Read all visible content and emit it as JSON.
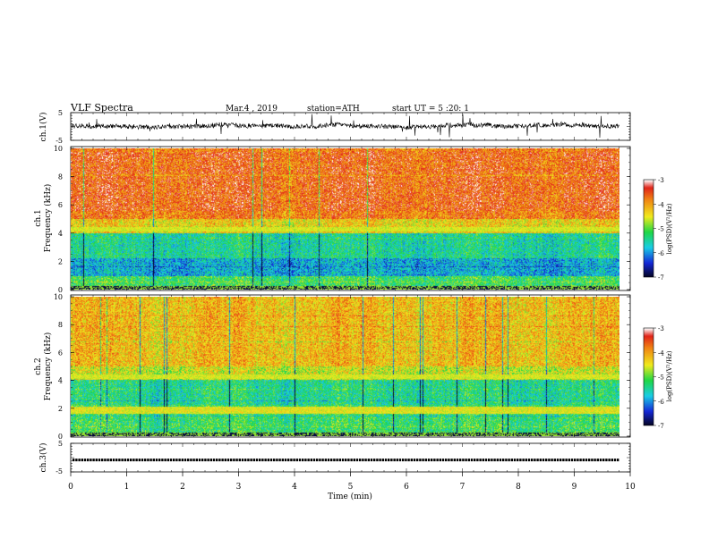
{
  "header": {
    "title": "VLF Spectra",
    "date": "Mar.4 , 2019",
    "station": "station=ATH",
    "start_time": "start UT = 5 :20: 1"
  },
  "chart_data": [
    {
      "type": "line",
      "name": "ch1-waveform",
      "ylabel": "ch.1(V)",
      "ylim": [
        -5,
        5
      ],
      "yticks": [
        "5",
        "-5"
      ],
      "xlim": [
        0,
        10
      ],
      "data_end_min": 9.8,
      "baseline": 0.1
    },
    {
      "type": "heatmap",
      "name": "ch1-spectrogram",
      "ylabel_top": "ch.1",
      "ylabel": "Frequency (kHz)",
      "ylim": [
        0,
        10
      ],
      "yticks": [
        "0",
        "2",
        "4",
        "6",
        "8",
        "10"
      ],
      "xlim": [
        0,
        10
      ],
      "data_end_min": 9.8,
      "colorbar": {
        "label": "log(PSD)(V²/Hz)",
        "range": [
          -7,
          -3
        ],
        "ticks": [
          "-3",
          "-4",
          "-5",
          "-6",
          "-7"
        ]
      }
    },
    {
      "type": "heatmap",
      "name": "ch2-spectrogram",
      "ylabel_top": "ch.2",
      "ylabel": "Frequency (kHz)",
      "ylim": [
        0,
        10
      ],
      "yticks": [
        "0",
        "2",
        "4",
        "6",
        "8",
        "10"
      ],
      "xlim": [
        0,
        10
      ],
      "data_end_min": 9.8,
      "colorbar": {
        "label": "log(PSD)(V²/Hz)",
        "range": [
          -7,
          -3
        ],
        "ticks": [
          "-3",
          "-4",
          "-5",
          "-6",
          "-7"
        ]
      }
    },
    {
      "type": "line",
      "name": "ch3-waveform",
      "ylabel": "ch.3(V)",
      "ylim": [
        -5,
        5
      ],
      "yticks": [
        "5",
        "-5"
      ],
      "xlim": [
        0,
        10
      ],
      "data_end_min": 9.8,
      "baseline": -0.5
    }
  ],
  "xaxis": {
    "label": "Time (min)",
    "ticks": [
      "0",
      "1",
      "2",
      "3",
      "4",
      "5",
      "6",
      "7",
      "8",
      "9",
      "10"
    ]
  },
  "colors": {
    "red": "#e4281c",
    "yellow": "#f0ec1e",
    "green": "#22d246",
    "cyan": "#19d2e6",
    "blue": "#1437d7",
    "navy": "#050a5a"
  }
}
